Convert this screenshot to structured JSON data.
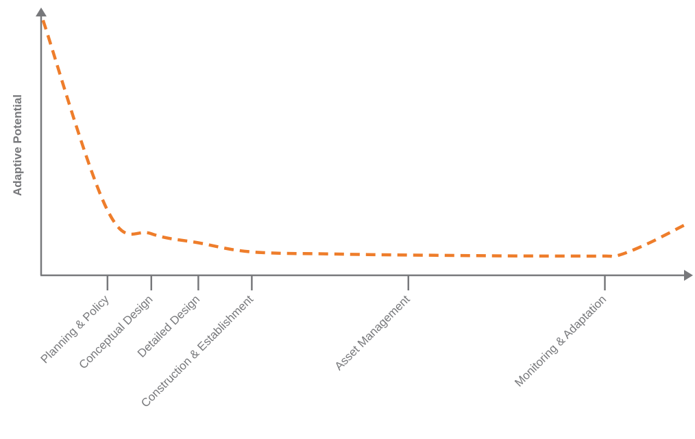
{
  "chart_data": {
    "type": "line",
    "title": "",
    "xlabel": "",
    "ylabel": "Adaptive Potential",
    "grid": false,
    "legend": "none",
    "xlim": [
      0,
      100
    ],
    "ylim": [
      0,
      100
    ],
    "ticks": [
      {
        "label": "Planning & Policy",
        "x": 10.3
      },
      {
        "label": "Conceptual Design",
        "x": 17.1
      },
      {
        "label": "Detailed Design",
        "x": 24.4
      },
      {
        "label": "Construction & Establishment",
        "x": 32.7
      },
      {
        "label": "Asset Management",
        "x": 57
      },
      {
        "label": "Monitoring & Adaptation",
        "x": 87.5
      }
    ],
    "series": [
      {
        "color": "#ee7d2b",
        "x": [
          0.3,
          10.3,
          17.1,
          24.4,
          32.7,
          45,
          57,
          70,
          80,
          87.5,
          89.5,
          94,
          100
        ],
        "y": [
          98,
          25,
          16,
          12.5,
          9,
          8.2,
          7.8,
          7.5,
          7.4,
          7.4,
          7.6,
          12,
          19.5
        ]
      }
    ],
    "colors": {
      "axis": "#77787b",
      "series": "#ee7d2b"
    }
  }
}
